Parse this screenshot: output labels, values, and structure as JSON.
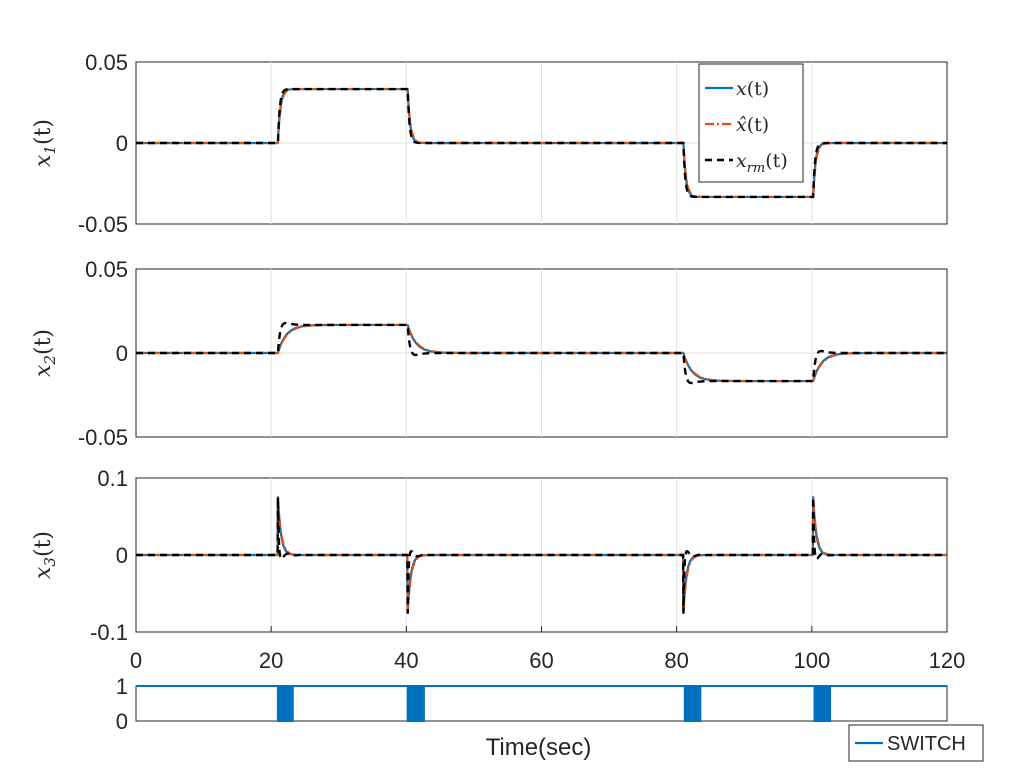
{
  "colors": {
    "x": "#0072BD",
    "xhat": "#D95319",
    "xrm": "#000000",
    "switch": "#0072BD"
  },
  "chart_data": [
    {
      "type": "line",
      "ylabel": "x1(t)",
      "ylabel_parts": {
        "base": "x",
        "sub": "1",
        "arg": "(t)"
      },
      "xlim": [
        0,
        120
      ],
      "ylim": [
        -0.05,
        0.05
      ],
      "yticks": [
        "0.05",
        "0",
        "-0.05"
      ],
      "ytick_values": [
        0.05,
        0,
        -0.05
      ],
      "xgrid": [
        0,
        20,
        40,
        60,
        80,
        100,
        120
      ],
      "grid": true,
      "legend": {
        "placement": "top-right",
        "entries": [
          {
            "series": "x",
            "label_base": "x",
            "label_arg": "(t)"
          },
          {
            "series": "xhat",
            "label_base": "x̂",
            "label_arg": "(t)"
          },
          {
            "series": "xrm",
            "label_base": "x",
            "label_sub": "rm",
            "label_arg": "(t)"
          }
        ]
      },
      "segments": [
        {
          "t": 21.0,
          "from": 0,
          "to": 0.0333
        },
        {
          "t": 40.2,
          "from": 0.0333,
          "to": 0
        },
        {
          "t": 81.0,
          "from": 0,
          "to": -0.0333
        },
        {
          "t": 100.2,
          "from": -0.0333,
          "to": 0
        }
      ],
      "series": [
        {
          "key": "x",
          "style": "solid",
          "tau": 0.35,
          "overshoot": 0.0
        },
        {
          "key": "xhat",
          "style": "dashdot",
          "tau": 0.4,
          "overshoot": 0.0
        },
        {
          "key": "xrm",
          "style": "dashed",
          "tau": 0.3,
          "overshoot": 0.0025
        }
      ]
    },
    {
      "type": "line",
      "ylabel": "x2(t)",
      "ylabel_parts": {
        "base": "x",
        "sub": "2",
        "arg": "(t)"
      },
      "xlim": [
        0,
        120
      ],
      "ylim": [
        -0.05,
        0.05
      ],
      "yticks": [
        "0.05",
        "0",
        "-0.05"
      ],
      "ytick_values": [
        0.05,
        0,
        -0.05
      ],
      "xgrid": [
        0,
        20,
        40,
        60,
        80,
        100,
        120
      ],
      "grid": true,
      "segments": [
        {
          "t": 21.0,
          "from": 0,
          "to": 0.0167
        },
        {
          "t": 40.2,
          "from": 0.0167,
          "to": 0
        },
        {
          "t": 81.0,
          "from": 0,
          "to": -0.0167
        },
        {
          "t": 100.2,
          "from": -0.0167,
          "to": 0
        }
      ],
      "series": [
        {
          "key": "x",
          "style": "solid",
          "tau": 1.2,
          "overshoot": 0.0
        },
        {
          "key": "xhat",
          "style": "dashdot",
          "tau": 1.3,
          "overshoot": 0.0
        },
        {
          "key": "xrm",
          "style": "dashed",
          "tau": 0.5,
          "overshoot": 0.0075
        }
      ]
    },
    {
      "type": "line",
      "ylabel": "x3(t)",
      "ylabel_parts": {
        "base": "x",
        "sub": "3",
        "arg": "(t)"
      },
      "xlim": [
        0,
        120
      ],
      "ylim": [
        -0.1,
        0.1
      ],
      "yticks": [
        "0.1",
        "0",
        "-0.1"
      ],
      "ytick_values": [
        0.1,
        0,
        -0.1
      ],
      "xticks": [
        "0",
        "20",
        "40",
        "60",
        "80",
        "100",
        "120"
      ],
      "xtick_values": [
        0,
        20,
        40,
        60,
        80,
        100,
        120
      ],
      "xgrid": [
        0,
        20,
        40,
        60,
        80,
        100,
        120
      ],
      "grid": true,
      "spikes": [
        {
          "t": 21.0,
          "peak": 0.075
        },
        {
          "t": 40.2,
          "peak": -0.075
        },
        {
          "t": 81.0,
          "peak": -0.075
        },
        {
          "t": 100.2,
          "peak": 0.075
        }
      ],
      "series": [
        {
          "key": "x",
          "style": "solid",
          "decay": 0.45
        },
        {
          "key": "xhat",
          "style": "dashdot",
          "decay": 0.5
        },
        {
          "key": "xrm",
          "style": "dashed",
          "decay": 0.3
        }
      ]
    },
    {
      "type": "line",
      "xlabel": "Time(sec)",
      "xlim": [
        0,
        120
      ],
      "ylim": [
        0,
        1
      ],
      "yticks": [
        "1",
        "0"
      ],
      "ytick_values": [
        1,
        0
      ],
      "grid": false,
      "legend": {
        "placement": "bottom-right",
        "entries": [
          {
            "series": "switch",
            "label": "SWITCH"
          }
        ]
      },
      "value_high": 1,
      "value_low": 0,
      "chatter_intervals": [
        [
          21.0,
          23.2
        ],
        [
          40.2,
          42.6
        ],
        [
          81.2,
          83.5
        ],
        [
          100.4,
          102.7
        ]
      ]
    }
  ]
}
